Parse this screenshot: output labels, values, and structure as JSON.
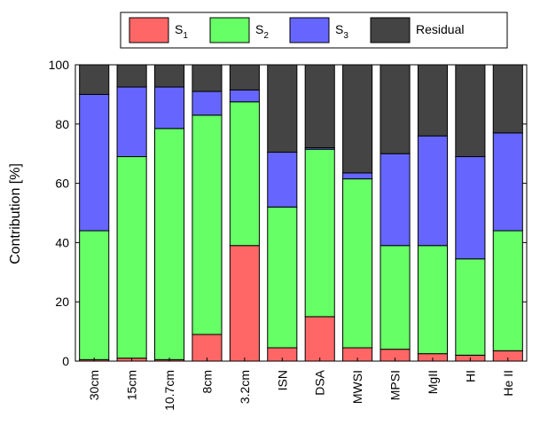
{
  "chart_data": {
    "type": "bar",
    "stacked": true,
    "categories": [
      "30cm",
      "15cm",
      "10.7cm",
      "8cm",
      "3.2cm",
      "ISN",
      "DSA",
      "MWSI",
      "MPSI",
      "MgII",
      "HI",
      "He II"
    ],
    "series": [
      {
        "name": "S1",
        "label_main": "S",
        "label_sub": "1",
        "color": "#ff6666",
        "values": [
          0.5,
          1,
          0.5,
          9,
          39,
          4.5,
          15,
          4.5,
          4,
          2.5,
          2,
          3.5
        ]
      },
      {
        "name": "S2",
        "label_main": "S",
        "label_sub": "2",
        "color": "#66ff66",
        "values": [
          43.5,
          68,
          78,
          74,
          48.5,
          47.5,
          56.5,
          57,
          35,
          36.5,
          32.5,
          40.5
        ]
      },
      {
        "name": "S3",
        "label_main": "S",
        "label_sub": "3",
        "color": "#6666ff",
        "values": [
          46,
          23.5,
          14,
          8,
          4,
          18.5,
          0.5,
          2,
          31,
          37,
          34.5,
          33
        ]
      },
      {
        "name": "Residual",
        "label_main": "Residual",
        "label_sub": "",
        "color": "#444444",
        "values": [
          10,
          7.5,
          7.5,
          9,
          8.5,
          29.5,
          28,
          36.5,
          30,
          24,
          31,
          23
        ]
      }
    ],
    "xlabel": "",
    "ylabel": "Contribution [%]",
    "ylim": [
      0,
      100
    ],
    "yticks": [
      0,
      20,
      40,
      60,
      80,
      100
    ],
    "grid": false,
    "legend_position": "top-center"
  }
}
